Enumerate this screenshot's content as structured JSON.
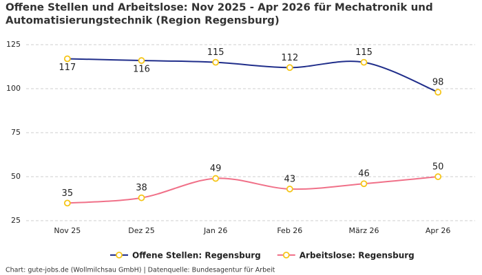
{
  "chart_data": {
    "type": "line",
    "title": "Offene Stellen und Arbeitslose: Nov 2025 - Apr 2026 für Mechatronik und",
    "title_line2": "Automatisierungstechnik (Region Regensburg)",
    "categories": [
      "Nov 25",
      "Dez 25",
      "Jan 26",
      "Feb 26",
      "März 26",
      "Apr 26"
    ],
    "series": [
      {
        "name": "Offene Stellen: Regensburg",
        "color": "#1f2d8a",
        "values": [
          117,
          116,
          115,
          112,
          115,
          98
        ]
      },
      {
        "name": "Arbeitslose: Regensburg",
        "color": "#f07088",
        "values": [
          35,
          38,
          49,
          43,
          46,
          50
        ]
      }
    ],
    "marker_color": "#f5c518",
    "ylim": [
      25,
      125
    ],
    "yticks": [
      25,
      50,
      75,
      100,
      125
    ],
    "grid": true,
    "legend": "bottom",
    "source": "Chart: gute-jobs.de (Wollmilchsau GmbH) | Datenquelle: Bundesagentur für Arbeit"
  }
}
